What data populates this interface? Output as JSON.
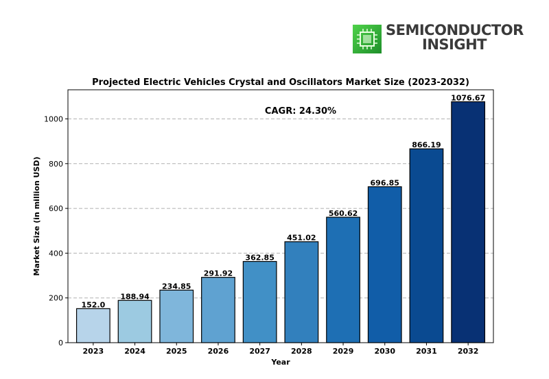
{
  "logo": {
    "line1": "SEMICONDUCTOR",
    "line2": "INSIGHT",
    "icon": "chip-icon"
  },
  "chart_data": {
    "type": "bar",
    "title": "Projected Electric Vehicles Crystal and Oscillators Market Size (2023-2032)",
    "xlabel": "Year",
    "ylabel": "Market Size (in million USD)",
    "categories": [
      "2023",
      "2024",
      "2025",
      "2026",
      "2027",
      "2028",
      "2029",
      "2030",
      "2031",
      "2032"
    ],
    "values": [
      152.0,
      188.94,
      234.85,
      291.92,
      362.85,
      451.02,
      560.62,
      696.85,
      866.19,
      1076.67
    ],
    "value_labels": [
      "152.0",
      "188.94",
      "234.85",
      "291.92",
      "362.85",
      "451.02",
      "560.62",
      "696.85",
      "866.19",
      "1076.67"
    ],
    "ylim": [
      0,
      1130
    ],
    "yticks": [
      0,
      200,
      400,
      600,
      800,
      1000
    ],
    "grid": "y-dashed",
    "annotation": "CAGR: 24.30%",
    "colors": [
      "#b7d4ea",
      "#9ccae1",
      "#7fb6db",
      "#5fa2d1",
      "#4190c6",
      "#3280bd",
      "#1e6fb4",
      "#115da8",
      "#0a4a91",
      "#083174"
    ],
    "edge_color": "#000000"
  }
}
